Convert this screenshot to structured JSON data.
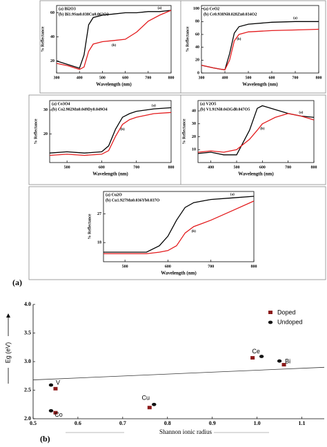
{
  "figure_labels": [
    "(a)",
    "(b)"
  ],
  "chart_data": [
    {
      "type": "line",
      "x_label": "Wavelength (nm)",
      "y_label": "% Reflectance",
      "x": [
        300,
        350,
        400,
        420,
        440,
        460,
        500,
        550,
        600,
        650,
        700,
        750,
        800
      ],
      "series": [
        {
          "name": "(a) Bi2O3",
          "label": "(a)",
          "color": "#000000",
          "values": [
            20,
            17,
            14,
            25,
            50,
            56,
            58,
            59,
            60,
            60,
            61,
            61,
            62
          ]
        },
        {
          "name": "(b) Bi1.9Sm0.038Cu0.062O3",
          "label": "(b)",
          "color": "#e31a1c",
          "values": [
            18,
            16,
            13,
            15,
            28,
            34,
            36,
            37,
            38,
            44,
            53,
            58,
            62
          ]
        }
      ],
      "xlim": [
        300,
        800
      ],
      "xticks": [
        300,
        400,
        500,
        600,
        700,
        800
      ],
      "ylim": [
        10,
        66
      ],
      "yticks": [
        20,
        40,
        60
      ]
    },
    {
      "type": "line",
      "x_label": "Wavelength (nm)",
      "y_label": "% Reflectance",
      "x": [
        300,
        350,
        380,
        400,
        420,
        440,
        460,
        500,
        600,
        700,
        800
      ],
      "series": [
        {
          "name": "(a) CeO2",
          "label": "(a)",
          "color": "#000000",
          "values": [
            12,
            8,
            6,
            5,
            30,
            62,
            72,
            76,
            79,
            80,
            80
          ]
        },
        {
          "name": "(b) Ce0.938Ni0.028Zn0.034O2",
          "label": "(b)",
          "color": "#e31a1c",
          "values": [
            12,
            8,
            6,
            5,
            20,
            50,
            60,
            64,
            66,
            67,
            68
          ]
        }
      ],
      "xlim": [
        300,
        800
      ],
      "xticks": [
        300,
        400,
        500,
        600,
        700,
        800
      ],
      "ylim": [
        0,
        105
      ],
      "yticks": [
        0,
        20,
        40,
        60,
        80,
        100
      ]
    },
    {
      "type": "line",
      "x_label": "Wavelength (nm)",
      "y_label": "% Reflectance",
      "x": [
        450,
        500,
        550,
        600,
        620,
        640,
        660,
        680,
        700,
        750,
        800
      ],
      "series": [
        {
          "name": "(a) Co3O4",
          "label": "(a)",
          "color": "#000000",
          "values": [
            12,
            12.5,
            12,
            12.5,
            15,
            22,
            27,
            28.5,
            29.5,
            30.5,
            31
          ]
        },
        {
          "name": "(b) Co2.902Mn0.049Dy0.049O4",
          "label": "(b)",
          "color": "#e31a1c",
          "values": [
            11,
            11.5,
            11,
            11.5,
            13,
            19,
            24,
            26,
            27,
            28.5,
            29
          ]
        }
      ],
      "xlim": [
        450,
        800
      ],
      "xticks": [
        500,
        600,
        700,
        800
      ],
      "ylim": [
        8,
        34
      ],
      "yticks": [
        20,
        30
      ]
    },
    {
      "type": "line",
      "x_label": "Wavelength (nm)",
      "y_label": "% Reflectance",
      "x": [
        350,
        400,
        450,
        500,
        550,
        580,
        600,
        650,
        700,
        750,
        800
      ],
      "series": [
        {
          "name": "(a) V2O5",
          "label": "(a)",
          "color": "#000000",
          "values": [
            7,
            8,
            6,
            6,
            25,
            42,
            44,
            41,
            38,
            36,
            35
          ]
        },
        {
          "name": "(b) V1.91Ni0.043Gd0.047O5",
          "label": "(b)",
          "color": "#e31a1c",
          "values": [
            8,
            9,
            8,
            10,
            18,
            25,
            30,
            35,
            38,
            36,
            33
          ]
        }
      ],
      "xlim": [
        350,
        800
      ],
      "xticks": [
        400,
        500,
        600,
        700,
        800
      ],
      "ylim": [
        0,
        48
      ],
      "yticks": [
        10,
        20,
        30,
        40
      ]
    },
    {
      "type": "line",
      "x_label": "Wavelength (nm)",
      "y_label": "% Reflectance",
      "x": [
        450,
        500,
        550,
        580,
        600,
        620,
        640,
        660,
        680,
        700,
        750,
        800
      ],
      "series": [
        {
          "name": "(a) Cu2O",
          "label": "(a)",
          "color": "#000000",
          "values": [
            15,
            15,
            15,
            17,
            20,
            25,
            29,
            30.5,
            31,
            31.5,
            32,
            32.5
          ]
        },
        {
          "name": "(b) Cu1.927Mn0.036Yb0.037O",
          "label": "(b)",
          "color": "#e31a1c",
          "values": [
            14.5,
            14.5,
            14.5,
            15,
            15.5,
            17,
            21,
            23,
            24,
            25,
            28,
            31
          ]
        }
      ],
      "xlim": [
        450,
        800
      ],
      "xticks": [
        500,
        600,
        700,
        800
      ],
      "ylim": [
        12,
        34
      ],
      "yticks": [
        18,
        27
      ]
    },
    {
      "type": "scatter",
      "x_label": "Shannon ionic radius",
      "y_label": "Eg (eV)",
      "point_labels": [
        "V",
        "Co",
        "Cu",
        "Ce",
        "Bi"
      ],
      "series": [
        {
          "name": "Doped",
          "color": "#8b1a1a",
          "marker": "square",
          "x": [
            0.55,
            0.55,
            0.76,
            0.99,
            1.06
          ],
          "values": [
            2.52,
            2.1,
            2.19,
            3.06,
            2.94
          ]
        },
        {
          "name": "Undoped",
          "color": "#111111",
          "marker": "ellipse",
          "x": [
            0.54,
            0.54,
            0.77,
            1.01,
            1.05
          ],
          "values": [
            2.59,
            2.14,
            2.25,
            3.09,
            3.01
          ]
        }
      ],
      "trend_line": {
        "x": [
          0.5,
          1.15
        ],
        "values": [
          2.68,
          2.9
        ]
      },
      "xlim": [
        0.5,
        1.15
      ],
      "xticks": [
        0.5,
        0.6,
        0.7,
        0.8,
        0.9,
        {
          "value": 1,
          "label": "1.0"
        },
        1.1
      ],
      "ylim": [
        2,
        4
      ],
      "yticks": [
        {
          "value": 2,
          "label": "2.0"
        },
        2.5,
        {
          "value": 3,
          "label": "3.0"
        },
        3.5,
        {
          "value": 4,
          "label": "4.0"
        }
      ],
      "legend": "top-right"
    }
  ]
}
